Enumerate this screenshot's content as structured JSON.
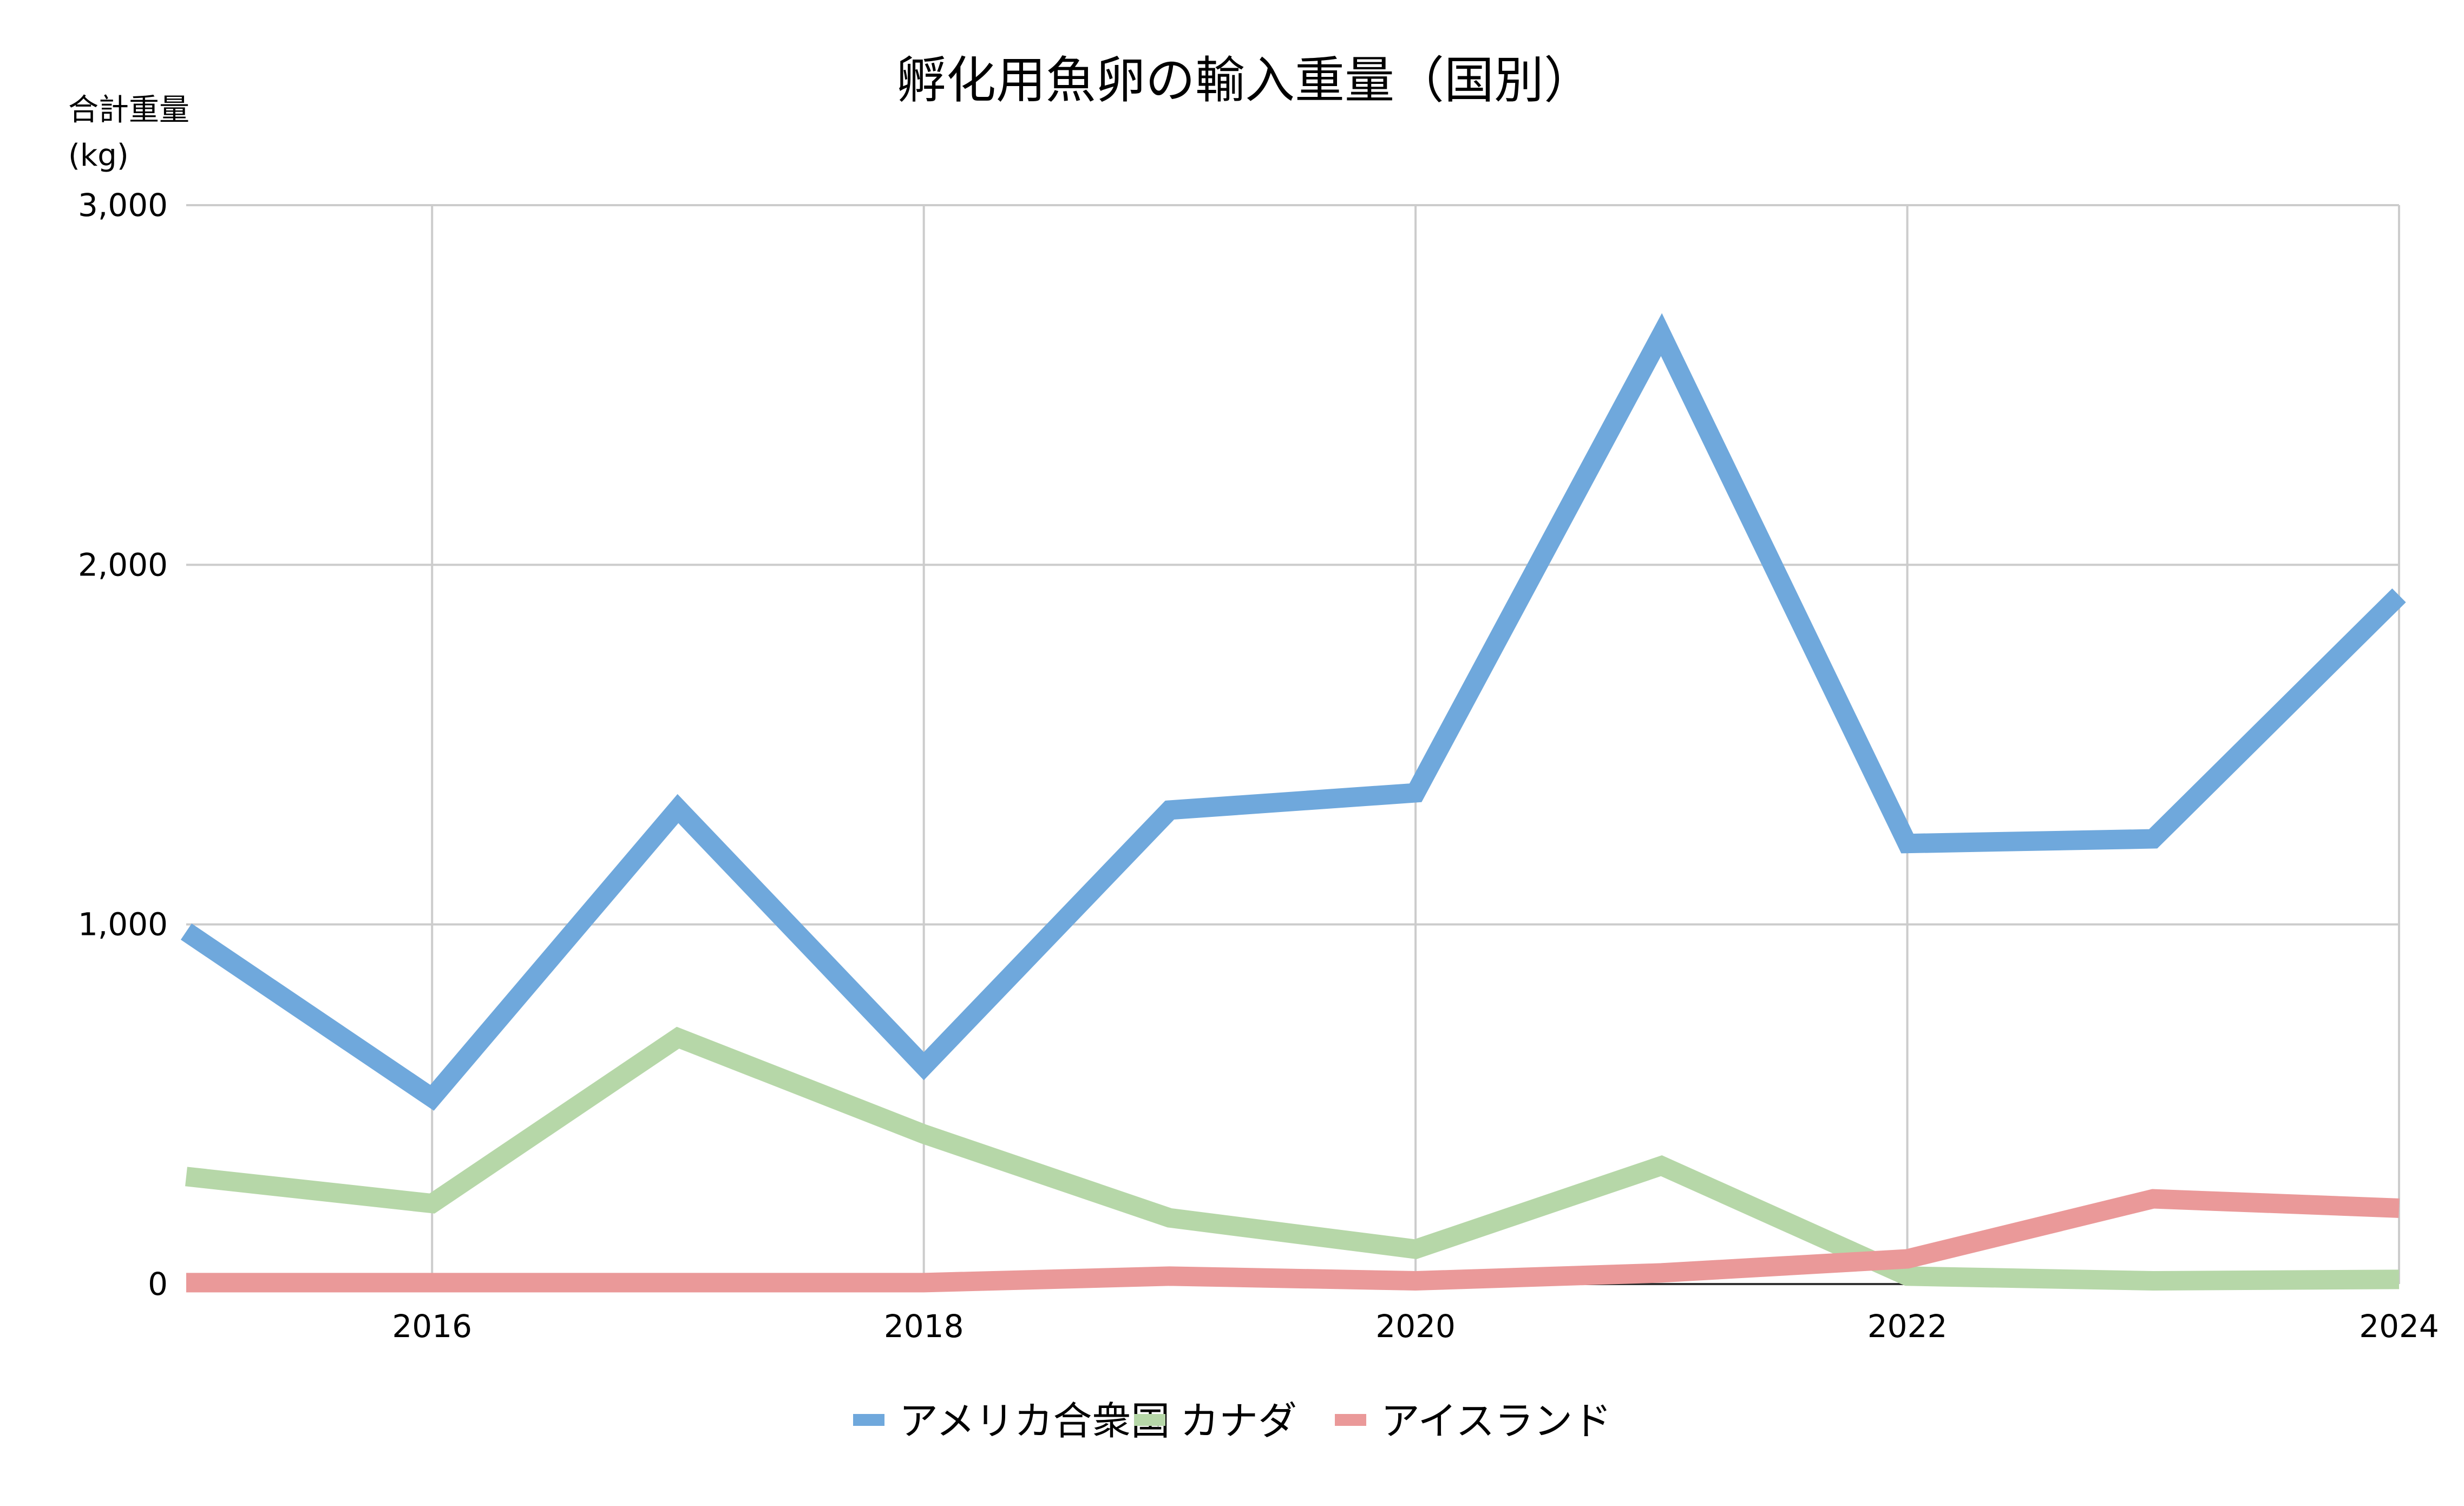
{
  "chart_data": {
    "type": "line",
    "title": "孵化用魚卵の輸入重量（国別）",
    "ylabel_line1": "合計重量",
    "ylabel_line2": "(kg)",
    "xlabel": "",
    "x": [
      2015,
      2016,
      2017,
      2018,
      2019,
      2020,
      2021,
      2022,
      2023,
      2024
    ],
    "xlim": [
      2015,
      2024
    ],
    "ylim": [
      0,
      3000
    ],
    "x_ticks": [
      "2016",
      "2018",
      "2020",
      "2022",
      "2024"
    ],
    "y_ticks": [
      "0",
      "1,000",
      "2,000",
      "3,000"
    ],
    "grid": true,
    "legend_position": "bottom",
    "series": [
      {
        "name": "アメリカ合衆国",
        "color": "#6fa8dc",
        "values": [
          980,
          518,
          1322,
          606,
          1318,
          1366,
          2640,
          1225,
          1238,
          1915
        ]
      },
      {
        "name": "カナダ",
        "color": "#b6d7a8",
        "values": [
          299,
          224,
          685,
          417,
          184,
          97,
          329,
          22,
          9,
          13
        ]
      },
      {
        "name": "アイスランド",
        "color": "#ea9999",
        "values": [
          4,
          4,
          4,
          4,
          22,
          9,
          31,
          70,
          237,
          211
        ]
      }
    ]
  }
}
